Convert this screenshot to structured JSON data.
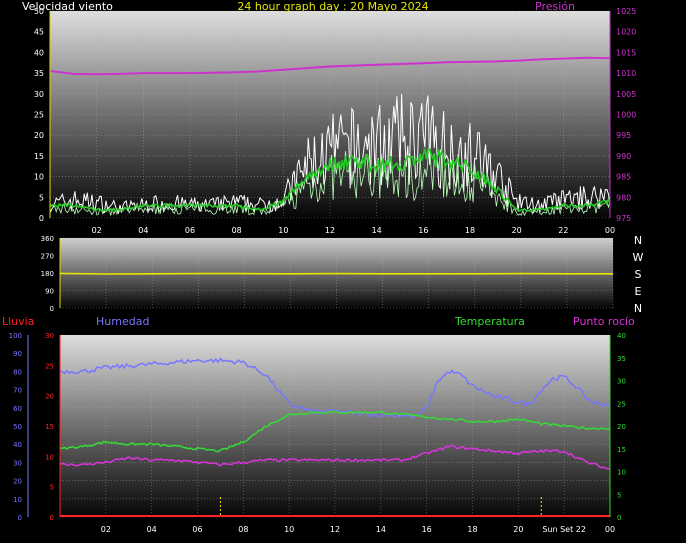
{
  "title": "24 hour graph day : 20 Mayo 2024",
  "colors": {
    "wind": "#ffffff",
    "wind_avg": "#22cc22",
    "pressure": "#cc33cc",
    "direction": "#e6e600",
    "humidity": "#7777ff",
    "temperature": "#33dd33",
    "dewpoint": "#dd33dd",
    "rain": "#ff2222"
  },
  "chart_data": [
    {
      "type": "line",
      "title": "Velocidad viento",
      "right_label": "Presión",
      "x_ticks": [
        "02",
        "04",
        "06",
        "08",
        "10",
        "12",
        "14",
        "16",
        "18",
        "20",
        "22",
        "00"
      ],
      "xlim": [
        0,
        24
      ],
      "ylim_left": [
        0,
        50
      ],
      "ylim_right": [
        975,
        1025
      ],
      "y_ticks_left": [
        "0",
        "5",
        "10",
        "15",
        "20",
        "25",
        "30",
        "35",
        "40",
        "45",
        "50"
      ],
      "y_ticks_right": [
        "975",
        "980",
        "985",
        "990",
        "995",
        "1000",
        "1005",
        "1010",
        "1015",
        "1020",
        "1025"
      ],
      "series": [
        {
          "key": "gust",
          "x": [
            0,
            1,
            2,
            3,
            4,
            5,
            6,
            7,
            8,
            9,
            10,
            11,
            12,
            13,
            14,
            15,
            16,
            17,
            18,
            19,
            20,
            21,
            22,
            23,
            24
          ],
          "values": [
            5,
            7,
            6,
            4,
            5,
            6,
            5,
            5,
            6,
            5,
            7,
            20,
            25,
            27,
            28,
            30,
            31,
            27,
            24,
            18,
            6,
            5,
            7,
            8,
            9
          ]
        },
        {
          "key": "avg",
          "x": [
            0,
            1,
            2,
            3,
            4,
            5,
            6,
            7,
            8,
            9,
            10,
            11,
            12,
            13,
            14,
            15,
            16,
            17,
            18,
            19,
            20,
            21,
            22,
            23,
            24
          ],
          "values": [
            3,
            3,
            2,
            2,
            3,
            3,
            3,
            3,
            3,
            2,
            4,
            10,
            13,
            14,
            13,
            13,
            15,
            14,
            12,
            8,
            2,
            2,
            3,
            3,
            4
          ]
        },
        {
          "key": "pressure",
          "x": [
            0,
            1,
            2,
            3,
            4,
            5,
            6,
            7,
            8,
            9,
            10,
            11,
            12,
            13,
            14,
            15,
            16,
            17,
            18,
            19,
            20,
            21,
            22,
            23,
            24
          ],
          "values": [
            1010.5,
            1009.8,
            1009.7,
            1009.8,
            1010,
            1010,
            1010,
            1010.1,
            1010.2,
            1010.4,
            1010.8,
            1011.2,
            1011.6,
            1011.8,
            1012,
            1012.2,
            1012.4,
            1012.6,
            1012.7,
            1012.8,
            1013,
            1013.3,
            1013.5,
            1013.7,
            1013.6
          ]
        }
      ]
    },
    {
      "type": "line",
      "title": "Dirección",
      "direction_labels": [
        "N",
        "W",
        "S",
        "E",
        "N"
      ],
      "xlim": [
        0,
        24
      ],
      "ylim": [
        0,
        360
      ],
      "y_ticks": [
        "0",
        "90",
        "180",
        "270",
        "360"
      ],
      "series": [
        {
          "key": "direction",
          "x": [
            0,
            2,
            4,
            6,
            8,
            10,
            12,
            14,
            16,
            18,
            20,
            22,
            24
          ],
          "values": [
            178,
            175,
            176,
            177,
            177,
            176,
            177,
            176,
            176,
            176,
            177,
            176,
            176
          ]
        }
      ]
    },
    {
      "type": "line",
      "labels": {
        "rain": "Lluvia",
        "humidity": "Humedad",
        "temperature": "Temperatura",
        "dewpoint": "Punto rocío"
      },
      "x_ticks": [
        "02",
        "04",
        "06",
        "08",
        "10",
        "12",
        "14",
        "16",
        "18",
        "20",
        "Sun Set 22",
        "00"
      ],
      "xlim": [
        0,
        24
      ],
      "ylim_outer": [
        0,
        100
      ],
      "ylim_inner": [
        0,
        30
      ],
      "ylim_right": [
        0,
        40
      ],
      "y_ticks_outer": [
        "0",
        "10",
        "20",
        "30",
        "40",
        "50",
        "60",
        "70",
        "80",
        "90",
        "100"
      ],
      "y_ticks_inner": [
        "0",
        "5",
        "10",
        "15",
        "20",
        "25",
        "30"
      ],
      "y_ticks_right": [
        "0",
        "5",
        "10",
        "15",
        "20",
        "25",
        "30",
        "35",
        "40"
      ],
      "markers_x": [
        7,
        21
      ],
      "series": [
        {
          "key": "humidity",
          "x": [
            0,
            1,
            2,
            3,
            4,
            5,
            6,
            7,
            8,
            9,
            9.5,
            10,
            11,
            12,
            13,
            14,
            15,
            15.5,
            16,
            16.5,
            17,
            17.5,
            18,
            19,
            19.5,
            20,
            20.5,
            21,
            21.5,
            22,
            22.5,
            23,
            23.5,
            24
          ],
          "values": [
            80,
            80,
            82,
            83,
            84,
            85,
            86,
            86,
            85,
            78,
            70,
            62,
            58,
            58,
            57,
            56,
            56,
            55,
            60,
            75,
            80,
            78,
            72,
            66,
            65,
            63,
            62,
            70,
            76,
            77,
            72,
            65,
            62,
            62
          ]
        },
        {
          "key": "temperature",
          "x": [
            0,
            1,
            2,
            3,
            4,
            5,
            6,
            7,
            8,
            9,
            10,
            11,
            12,
            13,
            14,
            15,
            16,
            17,
            18,
            19,
            20,
            21,
            22,
            23,
            24
          ],
          "values": [
            15,
            15.5,
            16.5,
            16,
            16,
            15.5,
            15,
            14.5,
            16.5,
            20,
            22.5,
            23,
            23,
            23,
            23,
            22.5,
            22,
            21.5,
            21,
            21,
            21.5,
            20.5,
            20,
            19.5,
            19.5
          ]
        },
        {
          "key": "dewpoint",
          "x": [
            0,
            1,
            2,
            3,
            4,
            5,
            6,
            7,
            8,
            9,
            10,
            11,
            12,
            13,
            14,
            15,
            16,
            17,
            18,
            19,
            20,
            21,
            22,
            23,
            24
          ],
          "values": [
            11.5,
            11.5,
            12,
            13,
            12.5,
            12.5,
            12,
            11.5,
            12,
            12.5,
            12.5,
            12.5,
            12.5,
            12.5,
            12.5,
            12.5,
            14,
            15.5,
            15,
            14.5,
            14,
            14.5,
            14.5,
            12,
            10.5
          ]
        },
        {
          "key": "rain",
          "x": [
            0,
            24
          ],
          "values": [
            0,
            0
          ]
        }
      ]
    }
  ]
}
